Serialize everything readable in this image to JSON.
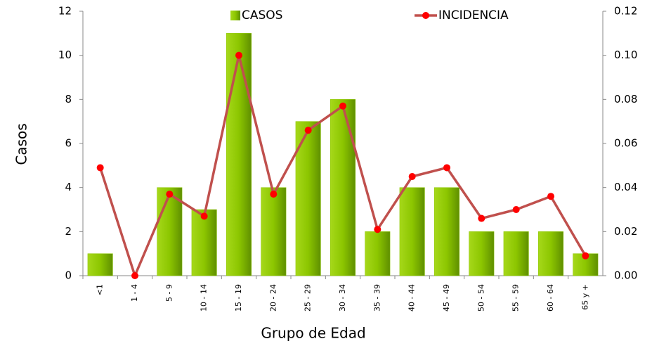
{
  "chart_data": {
    "type": "bar",
    "x_label": "Grupo de Edad",
    "y_label": "Casos",
    "categories": [
      "<1",
      "1 - 4",
      "5 - 9",
      "10 - 14",
      "15 - 19",
      "20 - 24",
      "25 - 29",
      "30 - 34",
      "35 - 39",
      "40 - 44",
      "45 - 49",
      "50 - 54",
      "55 - 59",
      "60 - 64",
      "65 y +"
    ],
    "series": [
      {
        "name": "CASOS",
        "type": "bar",
        "color": "#8cc600",
        "values": [
          1,
          0,
          4,
          3,
          11,
          4,
          7,
          8,
          2,
          4,
          4,
          2,
          2,
          2,
          1
        ]
      },
      {
        "name": "INCIDENCIA",
        "type": "line",
        "axis": "y2",
        "color": "#c0504d",
        "marker_color": "#ff0000",
        "values": [
          0.049,
          0.0,
          0.037,
          0.027,
          0.1,
          0.037,
          0.066,
          0.077,
          0.021,
          0.045,
          0.049,
          0.026,
          0.03,
          0.036,
          0.009
        ]
      }
    ],
    "ylim": [
      0,
      12
    ],
    "yticks": [
      0,
      2,
      4,
      6,
      8,
      10,
      12
    ],
    "y2lim": [
      0,
      0.12
    ],
    "y2ticks": [
      {
        "value": 0,
        "label": "0.00"
      },
      0.02,
      0.04,
      0.06,
      0.08,
      {
        "value": 0.1,
        "label": "0.10"
      },
      0.12
    ],
    "legend": "top",
    "grid": false
  }
}
